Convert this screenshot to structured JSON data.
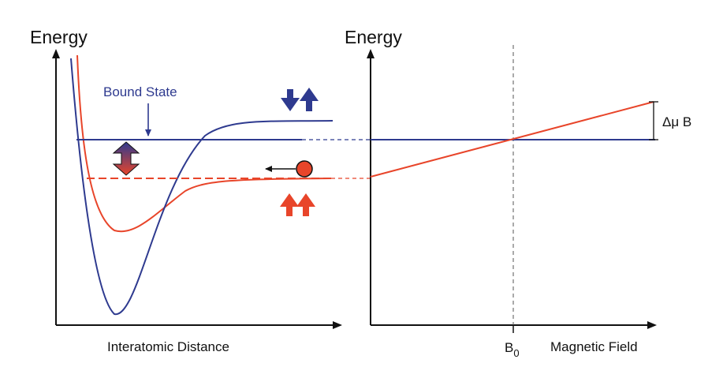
{
  "left_panel": {
    "y_title": "Energy",
    "x_title": "Interatomic Distance",
    "bound_state_label": "Bound State"
  },
  "right_panel": {
    "y_title": "Energy",
    "x_title": "Magnetic Field",
    "b0_base": "B",
    "b0_sub": "0",
    "delta_label": "Δμ B"
  },
  "colors": {
    "closed_channel": "#2e3a8f",
    "open_channel": "#e8452a",
    "axis": "#111111",
    "dashed_guide": "#555555"
  }
}
